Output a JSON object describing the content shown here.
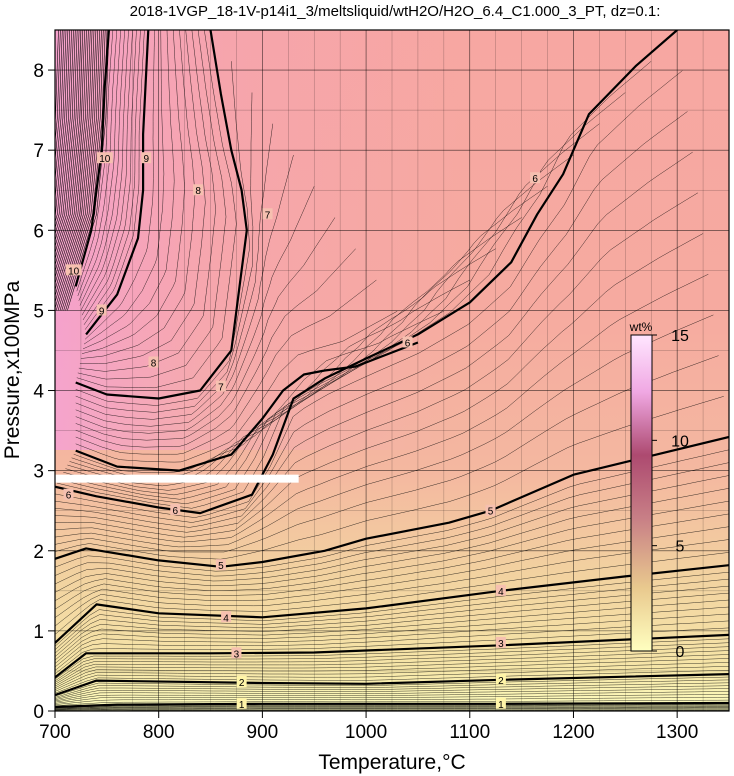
{
  "chart_data": {
    "type": "contour",
    "title": "2018-1VGP_18-1V-p14i1_3/meltsliquid/wtH2O/H2O_6.4_C1.000_3_PT, dz=0.1:",
    "xlabel": "Temperature,°C",
    "ylabel": "Pressure,x100MPa",
    "xlim": [
      700,
      1350
    ],
    "ylim": [
      0,
      8.5
    ],
    "x_ticks": [
      700,
      800,
      900,
      1000,
      1100,
      1200,
      1300
    ],
    "y_ticks": [
      0,
      1,
      2,
      3,
      4,
      5,
      6,
      7,
      8
    ],
    "grid": true,
    "colorbar": {
      "label": "wt%",
      "min": 0,
      "max": 15,
      "ticks": [
        0,
        5,
        10,
        15
      ],
      "colors": [
        "#ffffc0",
        "#e9c98e",
        "#c87f86",
        "#ad4a70",
        "#f0a8e3",
        "#ffe6ff"
      ]
    },
    "background_colors": {
      "low": "#ffffc0",
      "mid": "#f4b0a0",
      "high": "#f4a0d4"
    },
    "major_contours": [
      {
        "level": "1",
        "points": [
          [
            700,
            0.05
          ],
          [
            760,
            0.08
          ],
          [
            900,
            0.09
          ],
          [
            1000,
            0.09
          ],
          [
            1130,
            0.09
          ],
          [
            1350,
            0.1
          ]
        ],
        "labels": [
          [
            880,
            0.09
          ],
          [
            1130,
            0.09
          ]
        ]
      },
      {
        "level": "2",
        "points": [
          [
            700,
            0.2
          ],
          [
            740,
            0.38
          ],
          [
            900,
            0.35
          ],
          [
            1000,
            0.34
          ],
          [
            1130,
            0.39
          ],
          [
            1350,
            0.46
          ]
        ],
        "labels": [
          [
            880,
            0.36
          ],
          [
            1130,
            0.39
          ]
        ]
      },
      {
        "level": "3",
        "points": [
          [
            700,
            0.42
          ],
          [
            730,
            0.72
          ],
          [
            850,
            0.72
          ],
          [
            950,
            0.73
          ],
          [
            1130,
            0.82
          ],
          [
            1350,
            0.95
          ]
        ],
        "labels": [
          [
            875,
            0.72
          ],
          [
            1130,
            0.85
          ]
        ]
      },
      {
        "level": "4",
        "points": [
          [
            700,
            0.85
          ],
          [
            740,
            1.33
          ],
          [
            800,
            1.22
          ],
          [
            900,
            1.17
          ],
          [
            1000,
            1.28
          ],
          [
            1130,
            1.5
          ],
          [
            1250,
            1.68
          ],
          [
            1350,
            1.82
          ]
        ],
        "labels": [
          [
            865,
            1.17
          ],
          [
            1130,
            1.5
          ]
        ]
      },
      {
        "level": "5",
        "points": [
          [
            700,
            1.9
          ],
          [
            730,
            2.03
          ],
          [
            800,
            1.88
          ],
          [
            860,
            1.8
          ],
          [
            900,
            1.86
          ],
          [
            960,
            2.0
          ],
          [
            1000,
            2.15
          ],
          [
            1080,
            2.35
          ],
          [
            1120,
            2.5
          ],
          [
            1200,
            2.95
          ],
          [
            1280,
            3.2
          ],
          [
            1350,
            3.42
          ]
        ],
        "labels": [
          [
            860,
            1.82
          ],
          [
            1120,
            2.5
          ]
        ]
      },
      {
        "level": "6",
        "points": [
          [
            700,
            2.8
          ],
          [
            740,
            2.68
          ],
          [
            800,
            2.54
          ],
          [
            840,
            2.47
          ],
          [
            890,
            2.7
          ],
          [
            910,
            3.2
          ],
          [
            930,
            3.9
          ],
          [
            960,
            4.15
          ],
          [
            1000,
            4.4
          ],
          [
            1050,
            4.7
          ],
          [
            1100,
            5.1
          ],
          [
            1140,
            5.6
          ],
          [
            1165,
            6.2
          ],
          [
            1190,
            6.7
          ],
          [
            1215,
            7.45
          ],
          [
            1260,
            8.05
          ],
          [
            1300,
            8.5
          ]
        ],
        "labels": [
          [
            713,
            2.7
          ],
          [
            816,
            2.51
          ],
          [
            1040,
            4.6
          ],
          [
            1163,
            6.65
          ]
        ]
      },
      {
        "level": "7",
        "points": [
          [
            720,
            3.25
          ],
          [
            760,
            3.05
          ],
          [
            820,
            3.0
          ],
          [
            870,
            3.2
          ],
          [
            900,
            3.65
          ],
          [
            920,
            4.0
          ],
          [
            940,
            4.2
          ],
          [
            960,
            4.25
          ],
          [
            990,
            4.3
          ],
          [
            1000,
            4.35
          ],
          [
            1020,
            4.45
          ],
          [
            1050,
            4.6
          ]
        ],
        "labels": [
          [
            860,
            4.05
          ],
          [
            905,
            6.2
          ]
        ]
      },
      {
        "level": "8",
        "points": [
          [
            720,
            4.1
          ],
          [
            750,
            3.95
          ],
          [
            800,
            3.9
          ],
          [
            840,
            4.0
          ],
          [
            870,
            4.5
          ],
          [
            880,
            5.5
          ],
          [
            885,
            6.0
          ],
          [
            880,
            6.5
          ],
          [
            870,
            7.0
          ],
          [
            860,
            7.7
          ],
          [
            850,
            8.5
          ]
        ],
        "labels": [
          [
            795,
            4.35
          ],
          [
            838,
            6.5
          ]
        ]
      },
      {
        "level": "9",
        "points": [
          [
            730,
            4.7
          ],
          [
            760,
            5.2
          ],
          [
            780,
            5.9
          ],
          [
            785,
            6.5
          ],
          [
            785,
            7.2
          ],
          [
            790,
            8.5
          ]
        ],
        "labels": [
          [
            745,
            5.0
          ],
          [
            788,
            6.9
          ]
        ]
      },
      {
        "level": "10",
        "points": [
          [
            720,
            5.3
          ],
          [
            735,
            6.0
          ],
          [
            745,
            7.0
          ],
          [
            748,
            7.8
          ],
          [
            752,
            8.5
          ]
        ],
        "labels": [
          [
            718,
            5.5
          ],
          [
            748,
            6.9
          ]
        ]
      }
    ],
    "minor_contour_step": 0.1,
    "masked_band": {
      "x": [
        700,
        935
      ],
      "y": 2.9
    }
  }
}
